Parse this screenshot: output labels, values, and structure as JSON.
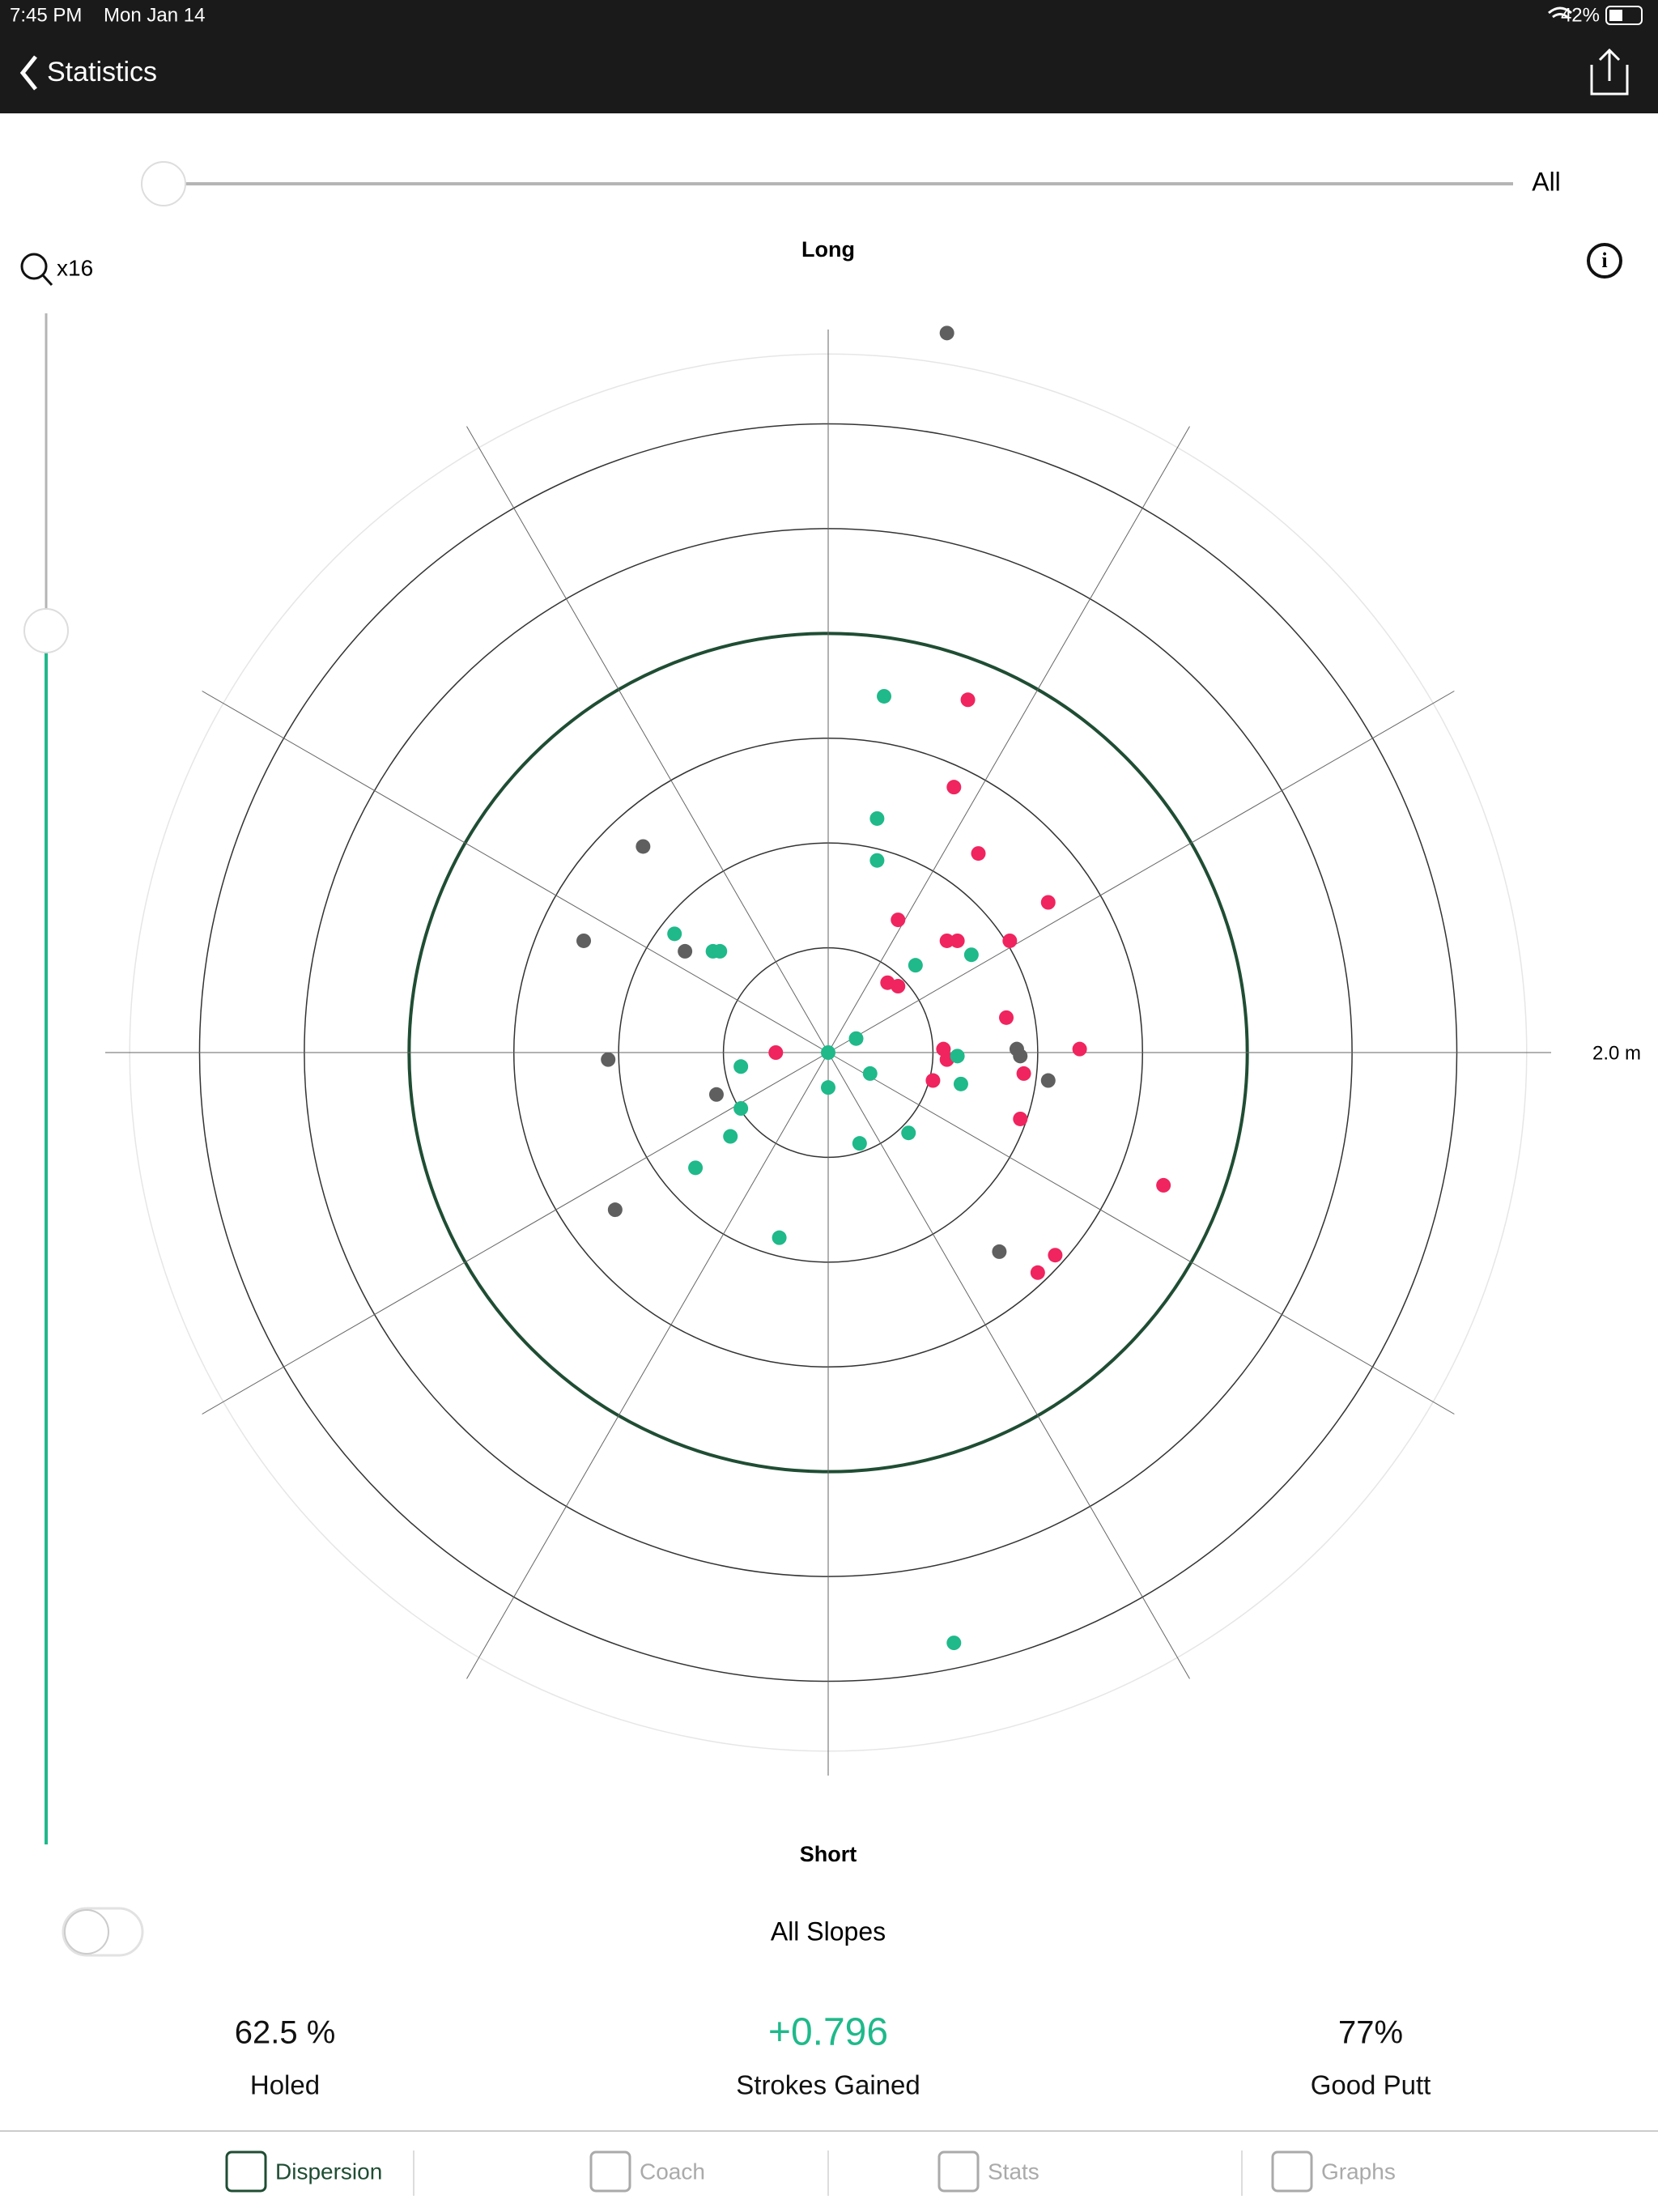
{
  "status_bar": {
    "time": "7:45 PM",
    "date": "Mon Jan 14",
    "battery": "42%"
  },
  "nav": {
    "back": "Statistics"
  },
  "filter_slider": {
    "label": "All"
  },
  "zoom": {
    "label": "x16"
  },
  "chart_data": {
    "type": "polar-scatter",
    "top_label": "Long",
    "bottom_label": "Short",
    "rlim": [
      0,
      2
    ],
    "rticks": [
      0.3,
      0.6,
      0.9,
      1.2,
      1.5,
      1.8,
      {
        "value": 2,
        "label": "2.0 m"
      }
    ],
    "highlight_ring": 1.2,
    "series": [
      {
        "color": "#5f5f5f",
        "x": [
          0.34,
          -0.53,
          -0.7,
          -0.41,
          -0.63,
          -0.32,
          -0.61,
          0.54,
          0.55,
          0.63,
          0.49
        ],
        "y": [
          2.06,
          0.59,
          0.32,
          0.29,
          -0.02,
          -0.12,
          -0.45,
          0.01,
          -0.01,
          -0.08,
          -0.57
        ]
      },
      {
        "color": "#f0245e",
        "x": [
          0.4,
          0.36,
          0.43,
          0.63,
          0.2,
          0.34,
          0.37,
          0.52,
          0.17,
          0.2,
          0.51,
          -0.15,
          0.33,
          0.34,
          0.72,
          0.56,
          0.3,
          0.55,
          0.96,
          0.65,
          0.6
        ],
        "y": [
          1.01,
          0.76,
          0.57,
          0.43,
          0.38,
          0.32,
          0.32,
          0.32,
          0.2,
          0.19,
          0.1,
          0,
          0.01,
          -0.02,
          0.01,
          -0.06,
          -0.08,
          -0.19,
          -0.38,
          -0.58,
          -0.63
        ]
      },
      {
        "color": "#1fb98a",
        "x": [
          0.16,
          0.14,
          0.14,
          -0.44,
          -0.33,
          -0.31,
          0.25,
          0.41,
          0.08,
          0,
          0.37,
          -0.25,
          0.12,
          0.38,
          0,
          -0.25,
          -0.28,
          0.23,
          0.09,
          -0.38,
          -0.14,
          0.36
        ],
        "y": [
          1.02,
          0.67,
          0.55,
          0.34,
          0.29,
          0.29,
          0.25,
          0.28,
          0.04,
          0,
          -0.01,
          -0.04,
          -0.06,
          -0.09,
          -0.1,
          -0.16,
          -0.24,
          -0.23,
          -0.26,
          -0.33,
          -0.53,
          -1.69
        ]
      }
    ]
  },
  "slope_toggle": {
    "label": "All Slopes"
  },
  "stats": [
    {
      "value": "62.5 %",
      "label": "Holed"
    },
    {
      "value": "+0.796",
      "label": "Strokes Gained"
    },
    {
      "value": "77%",
      "label": "Good Putt"
    }
  ],
  "tabs": [
    "Dispersion",
    "Coach",
    "Stats",
    "Graphs"
  ]
}
